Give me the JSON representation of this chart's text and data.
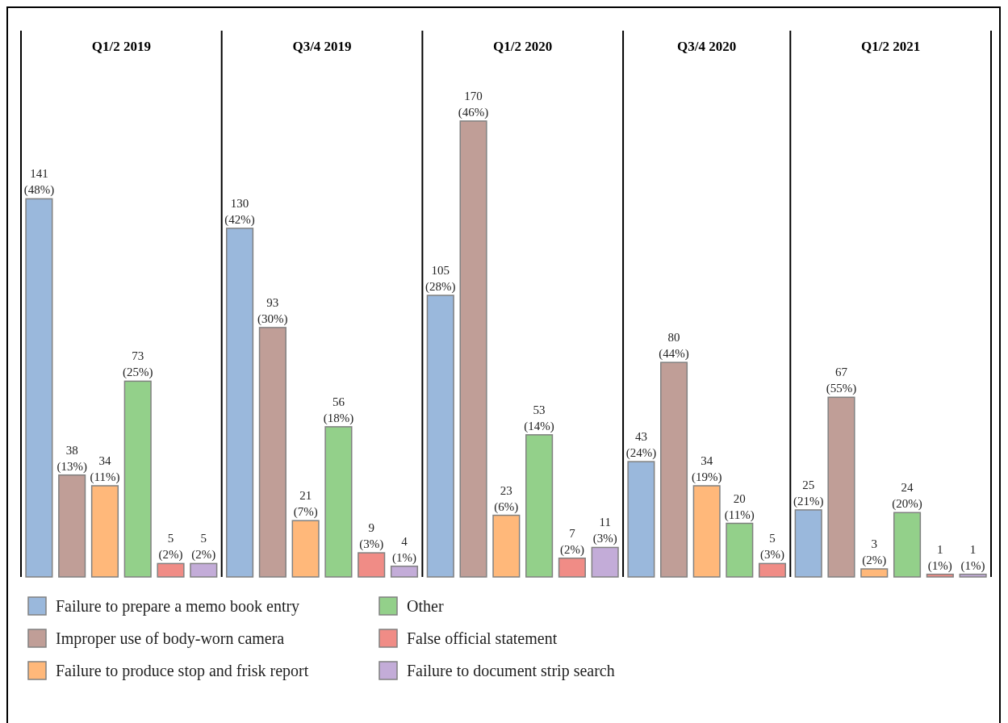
{
  "chart_data": [
    {
      "type": "bar",
      "title": "Q1/2 2019",
      "categories": [
        null
      ],
      "data_labels": true,
      "legend": "bottom",
      "series": [
        {
          "name": "Failure to prepare a memo book entry",
          "color": "#9ab8dc",
          "values": [
            141
          ],
          "value_labels": [
            "141 (48%)"
          ]
        },
        {
          "name": "Improper use of body-worn camera",
          "color": "#c09e97",
          "values": [
            38
          ],
          "value_labels": [
            "38 (13%)"
          ]
        },
        {
          "name": "Failure to produce stop and frisk report",
          "color": "#ffb87a",
          "values": [
            34
          ],
          "value_labels": [
            "34 (11%)"
          ]
        },
        {
          "name": "Other",
          "color": "#93d08a",
          "values": [
            73
          ],
          "value_labels": [
            "73 (25%)"
          ]
        },
        {
          "name": "False official statement",
          "color": "#f08c86",
          "values": [
            5
          ],
          "value_labels": [
            "5 (2%)"
          ]
        },
        {
          "name": "Failure to document strip search",
          "color": "#c3acd8",
          "values": [
            5
          ],
          "value_labels": [
            "5 (2%)"
          ]
        }
      ]
    },
    {
      "type": "bar",
      "title": "Q3/4 2019",
      "categories": [
        null
      ],
      "data_labels": true,
      "series": [
        {
          "color": "#9ab8dc",
          "values": [
            130
          ],
          "value_labels": [
            "130 (42%)"
          ]
        },
        {
          "color": "#c09e97",
          "values": [
            93
          ],
          "value_labels": [
            "93 (30%)"
          ]
        },
        {
          "color": "#ffb87a",
          "values": [
            21
          ],
          "value_labels": [
            "21 (7%)"
          ]
        },
        {
          "color": "#93d08a",
          "values": [
            56
          ],
          "value_labels": [
            "56 (18%)"
          ]
        },
        {
          "color": "#f08c86",
          "values": [
            9
          ],
          "value_labels": [
            "9 (3%)"
          ]
        },
        {
          "color": "#c3acd8",
          "values": [
            4
          ],
          "value_labels": [
            "4 (1%)"
          ]
        }
      ]
    },
    {
      "type": "bar",
      "title": "Q1/2 2020",
      "categories": [
        null
      ],
      "data_labels": true,
      "series": [
        {
          "color": "#9ab8dc",
          "values": [
            105
          ],
          "value_labels": [
            "105 (28%)"
          ]
        },
        {
          "color": "#c09e97",
          "values": [
            170
          ],
          "value_labels": [
            "170 (46%)"
          ]
        },
        {
          "color": "#ffb87a",
          "values": [
            23
          ],
          "value_labels": [
            "23 (6%)"
          ]
        },
        {
          "color": "#93d08a",
          "values": [
            53
          ],
          "value_labels": [
            "53 (14%)"
          ]
        },
        {
          "color": "#f08c86",
          "values": [
            7
          ],
          "value_labels": [
            "7 (2%)"
          ]
        },
        {
          "color": "#c3acd8",
          "values": [
            11
          ],
          "value_labels": [
            "11 (3%)"
          ]
        }
      ]
    },
    {
      "type": "bar",
      "title": "Q3/4 2020",
      "categories": [
        null
      ],
      "data_labels": true,
      "series": [
        {
          "color": "#9ab8dc",
          "values": [
            43
          ],
          "value_labels": [
            "43 (24%)"
          ]
        },
        {
          "color": "#c09e97",
          "values": [
            80
          ],
          "value_labels": [
            "80 (44%)"
          ]
        },
        {
          "color": "#ffb87a",
          "values": [
            34
          ],
          "value_labels": [
            "34 (19%)"
          ]
        },
        {
          "color": "#93d08a",
          "values": [
            20
          ],
          "value_labels": [
            "20 (11%)"
          ]
        },
        {
          "color": "#f08c86",
          "values": [
            5
          ],
          "value_labels": [
            "5 (3%)"
          ]
        }
      ]
    },
    {
      "type": "bar",
      "title": "Q1/2 2021",
      "categories": [
        null
      ],
      "data_labels": true,
      "series": [
        {
          "color": "#9ab8dc",
          "values": [
            25
          ],
          "value_labels": [
            "25 (21%)"
          ]
        },
        {
          "color": "#c09e97",
          "values": [
            67
          ],
          "value_labels": [
            "67 (55%)"
          ]
        },
        {
          "color": "#ffb87a",
          "values": [
            3
          ],
          "value_labels": [
            "3 (2%)"
          ]
        },
        {
          "color": "#93d08a",
          "values": [
            24
          ],
          "value_labels": [
            "24 (20%)"
          ]
        },
        {
          "color": "#f08c86",
          "values": [
            1
          ],
          "value_labels": [
            "1 (1%)"
          ]
        },
        {
          "color": "#c3acd8",
          "values": [
            1
          ],
          "value_labels": [
            "1 (1%)"
          ]
        }
      ]
    }
  ]
}
